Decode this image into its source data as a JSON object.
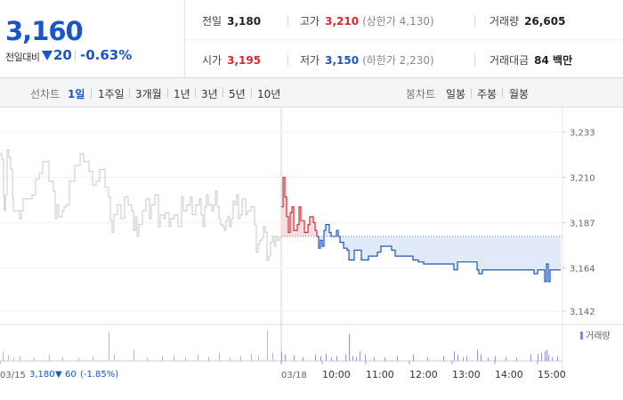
{
  "summary": {
    "current_price": "3,160",
    "change_label": "전일대비",
    "change_value": "20",
    "change_percent": "-0.63%",
    "stats": [
      {
        "label": "전일",
        "value": "3,180",
        "tone": "plain"
      },
      {
        "label": "고가",
        "value": "3,210",
        "tone": "up",
        "note": "(상한가 4,130)"
      },
      {
        "label": "거래량",
        "value": "26,605",
        "tone": "plain"
      },
      {
        "label": "시가",
        "value": "3,195",
        "tone": "up"
      },
      {
        "label": "저가",
        "value": "3,150",
        "tone": "down",
        "note": "(하한가 2,230)"
      },
      {
        "label": "거래대금",
        "value": "84 백만",
        "tone": "plain"
      }
    ]
  },
  "tabs": {
    "line_chart_label": "선차트",
    "line_tabs": [
      "1일",
      "1주일",
      "3개월",
      "1년",
      "3년",
      "5년",
      "10년"
    ],
    "active_line_tab": "1일",
    "candle_chart_label": "봉차트",
    "candle_tabs": [
      "일봉",
      "주봉",
      "월봉"
    ]
  },
  "colors": {
    "up": "#e0262f",
    "down": "#1a56c6",
    "prev_day": "#c8c8c8",
    "volume": "#b9b9c9"
  },
  "chart_data": {
    "type": "line",
    "y_ticks": [
      "3,233",
      "3,210",
      "3,187",
      "3,164",
      "3,142"
    ],
    "ylim": [
      3138,
      3240
    ],
    "reference_price": 3180,
    "x_labels": [
      "03/15",
      "03/18",
      "10:00",
      "11:00",
      "12:00",
      "13:00",
      "14:00",
      "15:00"
    ],
    "prev_day_caption": {
      "price": "3,180",
      "arrow": "▼",
      "change": "60",
      "pct": "(-1.85%)"
    },
    "volume_legend": "거래량",
    "prev_day_series": [
      [
        0,
        3222
      ],
      [
        2,
        3219
      ],
      [
        4,
        3200
      ],
      [
        5,
        3193
      ],
      [
        6,
        3201
      ],
      [
        8,
        3224
      ],
      [
        10,
        3220
      ],
      [
        12,
        3214
      ],
      [
        14,
        3200
      ],
      [
        15,
        3193
      ],
      [
        20,
        3193
      ],
      [
        22,
        3189
      ],
      [
        24,
        3193
      ],
      [
        26,
        3199
      ],
      [
        30,
        3199
      ],
      [
        36,
        3201
      ],
      [
        40,
        3209
      ],
      [
        44,
        3212
      ],
      [
        48,
        3218
      ],
      [
        55,
        3208
      ],
      [
        60,
        3203
      ],
      [
        62,
        3189
      ],
      [
        64,
        3196
      ],
      [
        66,
        3190
      ],
      [
        70,
        3193
      ],
      [
        72,
        3195
      ],
      [
        75,
        3196
      ],
      [
        78,
        3208
      ],
      [
        84,
        3216
      ],
      [
        90,
        3222
      ],
      [
        94,
        3218
      ],
      [
        100,
        3213
      ],
      [
        104,
        3206
      ],
      [
        108,
        3208
      ],
      [
        112,
        3214
      ],
      [
        118,
        3205
      ],
      [
        122,
        3200
      ],
      [
        124,
        3188
      ],
      [
        126,
        3182
      ],
      [
        128,
        3191
      ],
      [
        132,
        3196
      ],
      [
        136,
        3189
      ],
      [
        140,
        3200
      ],
      [
        144,
        3196
      ],
      [
        148,
        3193
      ],
      [
        150,
        3183
      ],
      [
        152,
        3190
      ],
      [
        154,
        3180
      ],
      [
        156,
        3186
      ],
      [
        160,
        3193
      ],
      [
        164,
        3199
      ],
      [
        168,
        3189
      ],
      [
        170,
        3196
      ],
      [
        174,
        3201
      ],
      [
        178,
        3185
      ],
      [
        180,
        3191
      ],
      [
        184,
        3189
      ],
      [
        186,
        3192
      ],
      [
        190,
        3185
      ],
      [
        192,
        3189
      ],
      [
        196,
        3191
      ],
      [
        200,
        3185
      ],
      [
        204,
        3200
      ],
      [
        206,
        3193
      ],
      [
        210,
        3196
      ],
      [
        214,
        3200
      ],
      [
        216,
        3191
      ],
      [
        220,
        3196
      ],
      [
        224,
        3199
      ],
      [
        226,
        3191
      ],
      [
        228,
        3185
      ],
      [
        230,
        3195
      ],
      [
        232,
        3201
      ],
      [
        234,
        3196
      ],
      [
        238,
        3193
      ],
      [
        240,
        3196
      ],
      [
        242,
        3203
      ],
      [
        244,
        3195
      ],
      [
        246,
        3189
      ],
      [
        248,
        3186
      ],
      [
        250,
        3185
      ],
      [
        252,
        3183
      ],
      [
        254,
        3188
      ],
      [
        256,
        3190
      ],
      [
        258,
        3185
      ],
      [
        260,
        3189
      ],
      [
        262,
        3198
      ],
      [
        264,
        3196
      ],
      [
        266,
        3201
      ],
      [
        268,
        3189
      ],
      [
        270,
        3191
      ],
      [
        272,
        3199
      ],
      [
        276,
        3191
      ],
      [
        278,
        3193
      ],
      [
        282,
        3195
      ],
      [
        286,
        3186
      ],
      [
        288,
        3172
      ],
      [
        290,
        3176
      ],
      [
        292,
        3178
      ],
      [
        294,
        3179
      ],
      [
        296,
        3185
      ],
      [
        298,
        3182
      ],
      [
        300,
        3168
      ],
      [
        302,
        3170
      ],
      [
        304,
        3177
      ],
      [
        306,
        3180
      ],
      [
        308,
        3175
      ],
      [
        310,
        3180
      ],
      [
        312,
        3178
      ],
      [
        314,
        3180
      ]
    ],
    "today_series": [
      [
        316,
        3195
      ],
      [
        318,
        3210
      ],
      [
        320,
        3200
      ],
      [
        322,
        3190
      ],
      [
        324,
        3182
      ],
      [
        326,
        3192
      ],
      [
        328,
        3195
      ],
      [
        330,
        3183
      ],
      [
        334,
        3186
      ],
      [
        336,
        3195
      ],
      [
        338,
        3188
      ],
      [
        342,
        3182
      ],
      [
        346,
        3186
      ],
      [
        348,
        3190
      ],
      [
        352,
        3187
      ],
      [
        354,
        3183
      ],
      [
        356,
        3180
      ],
      [
        358,
        3174
      ],
      [
        360,
        3178
      ],
      [
        362,
        3175
      ],
      [
        364,
        3183
      ],
      [
        366,
        3186
      ],
      [
        370,
        3182
      ],
      [
        372,
        3180
      ],
      [
        378,
        3183
      ],
      [
        380,
        3180
      ],
      [
        382,
        3177
      ],
      [
        386,
        3174
      ],
      [
        390,
        3173
      ],
      [
        392,
        3168
      ],
      [
        396,
        3168
      ],
      [
        398,
        3173
      ],
      [
        404,
        3173
      ],
      [
        406,
        3168
      ],
      [
        412,
        3168
      ],
      [
        414,
        3170
      ],
      [
        420,
        3170
      ],
      [
        424,
        3172
      ],
      [
        428,
        3175
      ],
      [
        436,
        3175
      ],
      [
        440,
        3173
      ],
      [
        444,
        3170
      ],
      [
        450,
        3170
      ],
      [
        460,
        3170
      ],
      [
        464,
        3168
      ],
      [
        470,
        3167
      ],
      [
        476,
        3166
      ],
      [
        490,
        3166
      ],
      [
        508,
        3166
      ],
      [
        510,
        3163
      ],
      [
        514,
        3167
      ],
      [
        524,
        3167
      ],
      [
        530,
        3167
      ],
      [
        534,
        3167
      ],
      [
        536,
        3163
      ],
      [
        538,
        3161
      ],
      [
        542,
        3163
      ],
      [
        548,
        3163
      ],
      [
        560,
        3163
      ],
      [
        580,
        3163
      ],
      [
        598,
        3163
      ],
      [
        600,
        3161
      ],
      [
        604,
        3163
      ],
      [
        610,
        3163
      ],
      [
        612,
        3157
      ],
      [
        614,
        3166
      ],
      [
        616,
        3157
      ],
      [
        618,
        3163
      ],
      [
        630,
        3163
      ]
    ],
    "volume_bars": [
      [
        3,
        0.3
      ],
      [
        9,
        0.18
      ],
      [
        15,
        0.1
      ],
      [
        22,
        0.15
      ],
      [
        38,
        0.1
      ],
      [
        55,
        0.2
      ],
      [
        70,
        0.12
      ],
      [
        88,
        0.1
      ],
      [
        104,
        0.14
      ],
      [
        122,
        0.9
      ],
      [
        128,
        0.2
      ],
      [
        150,
        0.35
      ],
      [
        165,
        0.1
      ],
      [
        182,
        0.15
      ],
      [
        195,
        0.18
      ],
      [
        208,
        0.12
      ],
      [
        222,
        0.2
      ],
      [
        234,
        0.14
      ],
      [
        246,
        0.25
      ],
      [
        258,
        0.1
      ],
      [
        270,
        0.15
      ],
      [
        282,
        0.22
      ],
      [
        290,
        0.18
      ],
      [
        300,
        0.95
      ],
      [
        306,
        0.25
      ],
      [
        316,
        0.3
      ],
      [
        320,
        0.2
      ],
      [
        330,
        0.18
      ],
      [
        340,
        0.12
      ],
      [
        354,
        0.2
      ],
      [
        360,
        0.15
      ],
      [
        366,
        0.22
      ],
      [
        372,
        0.1
      ],
      [
        378,
        0.15
      ],
      [
        388,
        0.2
      ],
      [
        392,
        0.85
      ],
      [
        396,
        0.15
      ],
      [
        400,
        0.12
      ],
      [
        404,
        0.3
      ],
      [
        410,
        0.2
      ],
      [
        420,
        0.12
      ],
      [
        432,
        0.1
      ],
      [
        446,
        0.15
      ],
      [
        464,
        0.2
      ],
      [
        480,
        0.12
      ],
      [
        498,
        0.15
      ],
      [
        510,
        0.3
      ],
      [
        514,
        0.2
      ],
      [
        520,
        0.12
      ],
      [
        524,
        0.15
      ],
      [
        536,
        0.35
      ],
      [
        540,
        0.2
      ],
      [
        548,
        0.1
      ],
      [
        556,
        0.15
      ],
      [
        568,
        0.12
      ],
      [
        580,
        0.1
      ],
      [
        596,
        0.2
      ],
      [
        604,
        0.22
      ],
      [
        608,
        0.25
      ],
      [
        612,
        0.3
      ],
      [
        614,
        0.35
      ],
      [
        616,
        0.2
      ],
      [
        620,
        0.12
      ],
      [
        626,
        0.15
      ]
    ]
  }
}
